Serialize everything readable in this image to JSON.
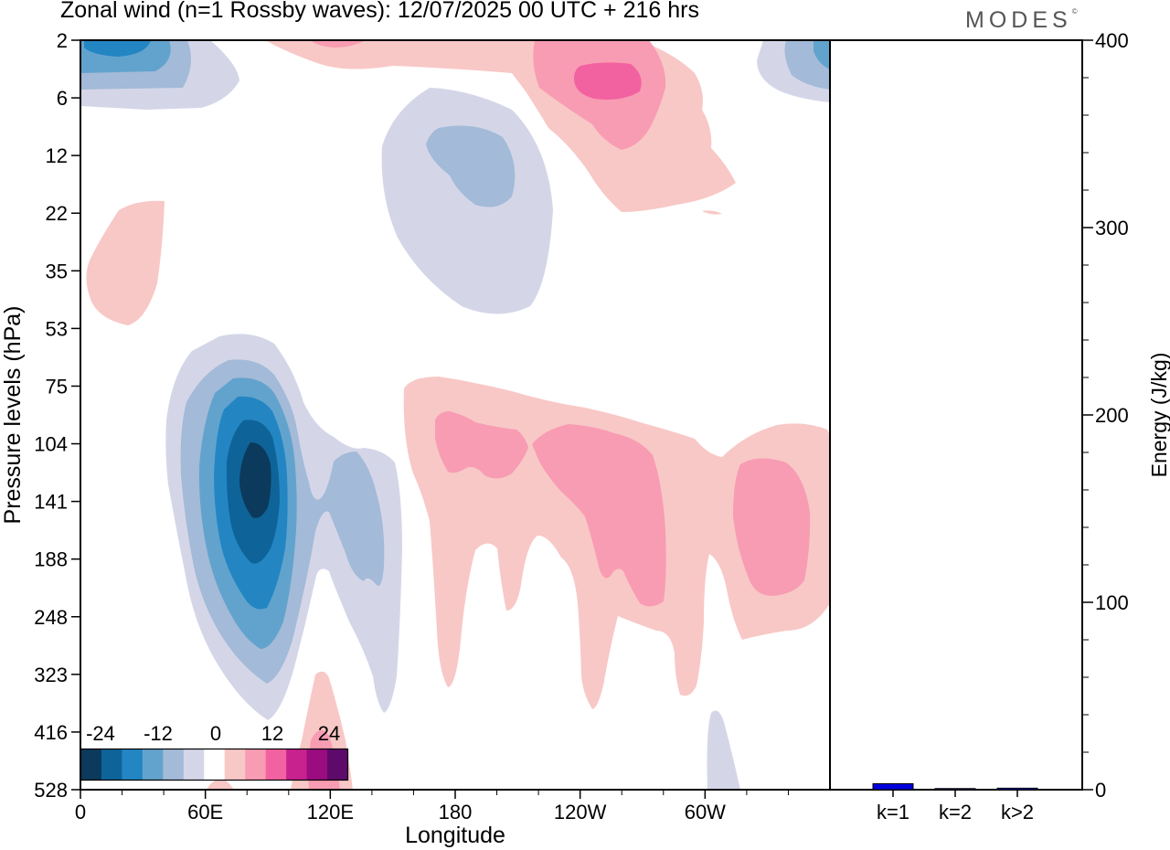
{
  "title": "Zonal wind (n=1 Rossby waves):  12/07/2025  00 UTC  + 216 hrs",
  "brand": "MODES",
  "brand_mark": "©",
  "colors": {
    "contour_fills": [
      "#0c3a5c",
      "#0e6499",
      "#2386c3",
      "#62a3cd",
      "#a3bad8",
      "#d4d6e8",
      "#ffffff",
      "#f8c8c6",
      "#f89cb3",
      "#f262a1",
      "#c8228f",
      "#9a0c7f",
      "#5e0a6c"
    ],
    "energy_bar": "#0000dd"
  },
  "colorbar": {
    "labels": [
      "-24",
      "-12",
      "0",
      "12",
      "24"
    ],
    "values": [
      -24,
      -12,
      0,
      12,
      24
    ]
  },
  "chart_data": [
    {
      "type": "heatmap",
      "title": "Zonal wind (n=1 Rossby waves):  12/07/2025  00 UTC  + 216 hrs",
      "xlabel": "Longitude",
      "ylabel": "Pressure levels (hPa)",
      "x_ticks": [
        "0",
        "60E",
        "120E",
        "180",
        "120W",
        "60W"
      ],
      "x_tick_values": [
        0,
        60,
        120,
        180,
        240,
        300
      ],
      "xlim": [
        0,
        360
      ],
      "y_ticks": [
        "2",
        "6",
        "12",
        "22",
        "35",
        "53",
        "75",
        "104",
        "141",
        "188",
        "248",
        "323",
        "416",
        "528"
      ],
      "y_tick_values": [
        2,
        6,
        12,
        22,
        35,
        53,
        75,
        104,
        141,
        188,
        248,
        323,
        416,
        528
      ],
      "contour_levels": [
        -27,
        -24,
        -18,
        -12,
        -6,
        -3,
        3,
        6,
        12,
        18,
        24,
        27
      ],
      "features": [
        {
          "sign": "negative",
          "peak": -27,
          "lon": 82,
          "pressure": 130
        },
        {
          "sign": "negative",
          "peak": -12,
          "lon": 10,
          "pressure": 3
        },
        {
          "sign": "negative",
          "peak": -9,
          "lon": 195,
          "pressure": 14
        },
        {
          "sign": "negative",
          "peak": -9,
          "lon": 350,
          "pressure": 3
        },
        {
          "sign": "negative",
          "peak": -6,
          "lon": 135,
          "pressure": 180
        },
        {
          "sign": "positive",
          "peak": 12,
          "lon": 245,
          "pressure": 5
        },
        {
          "sign": "positive",
          "peak": 9,
          "lon": 195,
          "pressure": 120
        },
        {
          "sign": "positive",
          "peak": 9,
          "lon": 245,
          "pressure": 160
        },
        {
          "sign": "positive",
          "peak": 9,
          "lon": 340,
          "pressure": 165
        },
        {
          "sign": "positive",
          "peak": 3,
          "lon": 35,
          "pressure": 35
        },
        {
          "sign": "positive",
          "peak": 3,
          "lon": 115,
          "pressure": 450
        }
      ]
    },
    {
      "type": "bar",
      "categories": [
        "k=1",
        "k=2",
        "k>2"
      ],
      "values": [
        3.2,
        0.6,
        0.8
      ],
      "ylabel": "Energy (J/kg)",
      "ylim": [
        0,
        400
      ],
      "y_ticks": [
        0,
        100,
        200,
        300,
        400
      ]
    }
  ]
}
